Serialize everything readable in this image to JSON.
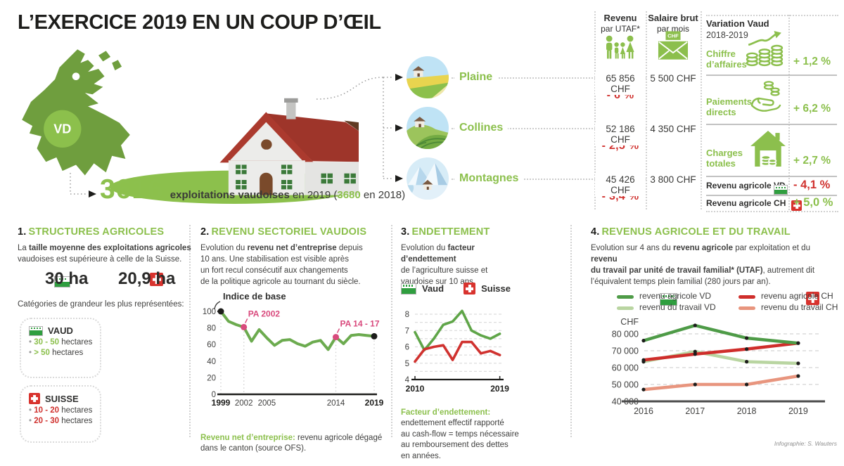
{
  "colors": {
    "accent": "#8cc04d",
    "green_flag": "#2f9e3f",
    "green_dark": "#4e9b47",
    "green_light": "#b9d5a1",
    "red": "#d0322f",
    "salmon": "#e8957e",
    "pink": "#d94a7d",
    "dark": "#1d1d1b"
  },
  "title": "L’EXERCICE 2019 EN UN COUP D’ŒIL",
  "map_badge": "VD",
  "stats": {
    "count": "3616",
    "suffix": [
      {
        "t": "exploitations vaudoises",
        "b": 1
      },
      {
        "t": " en 2019 ("
      },
      {
        "t": "3680",
        "b": 1,
        "c": "#8cc04d"
      },
      {
        "t": " en 2018)"
      }
    ]
  },
  "table": {
    "col1_line1": "Revenu",
    "col1_line2": "par UTAF*",
    "col2_line1": "Salaire brut",
    "col2_line2": "par mois",
    "envelope_label": "CHF",
    "rows": [
      {
        "label": "Plaine",
        "revenu": "65 856 CHF",
        "salaire": "5 500 CHF",
        "change": "- 6 %"
      },
      {
        "label": "Collines",
        "revenu": "52 186 CHF",
        "salaire": "4 350 CHF",
        "change": "- 2,5 %"
      },
      {
        "label": "Montagnes",
        "revenu": "45 426 CHF",
        "salaire": "3 800 CHF",
        "change": "- 3,4 %"
      }
    ]
  },
  "variation": {
    "title_line1": "Variation Vaud",
    "title_line2": "2018-2019",
    "items": [
      {
        "label1": "Chiffre",
        "label2": "d’affaires",
        "value": "+ 1,2 %"
      },
      {
        "label1": "Paiements",
        "label2": "directs",
        "value": "+ 6,2 %"
      },
      {
        "label1": "Charges",
        "label2": "totales",
        "value": "+ 2,7 %"
      }
    ],
    "rows": [
      {
        "label": "Revenu agricole VD",
        "value": "- 4,1 %"
      },
      {
        "label": "Revenu agricole CH",
        "value": "+ 5,0 %"
      }
    ]
  },
  "sections": {
    "s1": {
      "num": "1.",
      "title": "STRUCTURES AGRICOLES",
      "intro": [
        {
          "t": "La "
        },
        {
          "t": "taille moyenne des exploitations agricoles",
          "b": 1
        },
        {
          "br": true
        },
        {
          "t": "vaudoises est supérieure à celle de la Suisse."
        }
      ],
      "vd_value": "30 ha",
      "ch_value": "20,9 ha",
      "categories_label": "Catégories de grandeur les plus représentées:",
      "vaud_card": {
        "title": "VAUD",
        "bullets": [
          [
            {
              "t": "• ",
              "c": "#9a9a9a"
            },
            {
              "t": "30 - 50",
              "b": 1,
              "c": "#8cc04d"
            },
            {
              "t": " hectares"
            }
          ],
          [
            {
              "t": "• ",
              "c": "#9a9a9a"
            },
            {
              "t": "> 50",
              "b": 1,
              "c": "#8cc04d"
            },
            {
              "t": " hectares"
            }
          ]
        ]
      },
      "suisse_card": {
        "title": "SUISSE",
        "bullets": [
          [
            {
              "t": "• ",
              "c": "#9a9a9a"
            },
            {
              "t": "10 - 20",
              "b": 1,
              "c": "#d0322f"
            },
            {
              "t": " hectares"
            }
          ],
          [
            {
              "t": "• ",
              "c": "#9a9a9a"
            },
            {
              "t": "20 - 30",
              "b": 1,
              "c": "#d0322f"
            },
            {
              "t": " hectares"
            }
          ]
        ]
      }
    },
    "s2": {
      "num": "2.",
      "title": "REVENU SECTORIEL VAUDOIS",
      "intro": [
        {
          "t": "Evolution du "
        },
        {
          "t": "revenu net d’entreprise",
          "b": 1
        },
        {
          "t": " depuis"
        },
        {
          "br": true
        },
        {
          "t": "10 ans. Une stabilisation est visible après"
        },
        {
          "br": true
        },
        {
          "t": "un fort recul consécutif aux changements"
        },
        {
          "br": true
        },
        {
          "t": "de la politique agricole au tournant du siècle."
        }
      ],
      "footnote": [
        {
          "t": "Revenu net d’entreprise:",
          "b": 1,
          "c": "#8cc04d"
        },
        {
          "t": " revenu agricole dégagé"
        },
        {
          "br": true
        },
        {
          "t": "dans le canton (source OFS)."
        }
      ]
    },
    "s3": {
      "num": "3.",
      "title": "ENDETTEMENT",
      "intro": [
        {
          "t": "Evolution du "
        },
        {
          "t": "facteur",
          "b": 1
        },
        {
          "br": true
        },
        {
          "t": "d’endettement",
          "b": 1
        },
        {
          "br": true
        },
        {
          "t": "de l’agriculture suisse et"
        },
        {
          "br": true
        },
        {
          "t": "vaudoise sur 10 ans."
        }
      ],
      "footnote": [
        {
          "t": "Facteur d’endettement:",
          "b": 1,
          "c": "#8cc04d"
        },
        {
          "br": true
        },
        {
          "t": "endettement effectif rapporté"
        },
        {
          "br": true
        },
        {
          "t": "au cash-flow = temps nécessaire"
        },
        {
          "br": true
        },
        {
          "t": "au remboursement des dettes"
        },
        {
          "br": true
        },
        {
          "t": "en années."
        }
      ]
    },
    "s4": {
      "num": "4.",
      "title": "REVENUS AGRICOLE ET DU TRAVAIL",
      "intro": [
        {
          "t": "Evolution sur 4 ans du "
        },
        {
          "t": "revenu agricole",
          "b": 1
        },
        {
          "t": " par exploitation et du "
        },
        {
          "t": "revenu",
          "b": 1
        },
        {
          "br": true
        },
        {
          "t": "du travail par unité de travail familial* (UTAF)",
          "b": 1
        },
        {
          "t": ", autrement dit"
        },
        {
          "br": true
        },
        {
          "t": "l’équivalent temps plein familial (280 jours par an)."
        }
      ],
      "credit": "Infographie: S. Wauters"
    }
  },
  "chart_data": [
    {
      "id": "indice",
      "type": "line",
      "title": "2. REVENU SECTORIEL VAUDOIS",
      "note": "Indice de base",
      "x": [
        1999,
        2000,
        2001,
        2002,
        2003,
        2004,
        2005,
        2006,
        2007,
        2008,
        2009,
        2010,
        2011,
        2012,
        2013,
        2014,
        2015,
        2016,
        2017,
        2018,
        2019
      ],
      "values": [
        100,
        88,
        84,
        81,
        64,
        78,
        68,
        59,
        65,
        66,
        61,
        58,
        63,
        65,
        54,
        69,
        61,
        71,
        72,
        71,
        70
      ],
      "color": "#6cab4f",
      "ylim": [
        0,
        100
      ],
      "yticks": [
        {
          "v": 0,
          "label": "0"
        },
        {
          "v": 20,
          "label": "20"
        },
        {
          "v": 40,
          "label": "40"
        },
        {
          "v": 60,
          "label": "60"
        },
        {
          "v": 80,
          "label": "80"
        },
        {
          "v": 100,
          "label": "100"
        }
      ],
      "xticks": [
        {
          "v": 1999,
          "label": "1999",
          "bold": true
        },
        {
          "v": 2002,
          "label": "2002"
        },
        {
          "v": 2005,
          "label": "2005"
        },
        {
          "v": 2014,
          "label": "2014"
        },
        {
          "v": 2019,
          "label": "2019",
          "bold": true
        }
      ],
      "vgrid": [
        1999,
        2002,
        2014,
        2019
      ],
      "annotations": [
        {
          "x": 2002,
          "y": 81,
          "label": "PA 2002"
        },
        {
          "x": 2014,
          "y": 69,
          "label": "PA 14 - 17"
        }
      ],
      "annotation_color": "#d94a7d",
      "endpoint_color": "#1d1d1b"
    },
    {
      "id": "endettement",
      "type": "line",
      "title": "3. ENDETTEMENT",
      "x": [
        2010,
        2011,
        2012,
        2013,
        2014,
        2015,
        2016,
        2017,
        2018,
        2019
      ],
      "series": [
        {
          "name": "Vaud",
          "color": "#5fa548",
          "values": [
            6.9,
            5.8,
            6.5,
            7.35,
            7.55,
            8.2,
            7.0,
            6.7,
            6.5,
            6.8
          ]
        },
        {
          "name": "Suisse",
          "color": "#d0322f",
          "values": [
            5.1,
            5.85,
            6.0,
            6.1,
            5.2,
            6.3,
            6.3,
            5.6,
            5.75,
            5.5
          ]
        }
      ],
      "ylim": [
        4,
        8.5
      ],
      "yticks": [
        {
          "v": 8,
          "label": "8"
        },
        {
          "v": 7,
          "label": "7"
        },
        {
          "v": 6,
          "label": "6"
        },
        {
          "v": 5,
          "label": "5"
        },
        {
          "v": 4,
          "label": "4"
        }
      ],
      "xticks": [
        {
          "v": 2010,
          "label": "2010",
          "bold": true
        },
        {
          "v": 2019,
          "label": "2019",
          "bold": true
        }
      ]
    },
    {
      "id": "revenus",
      "type": "line",
      "title": "4. REVENUS AGRICOLE ET DU TRAVAIL",
      "ylabel": "CHF",
      "x": [
        2016,
        2017,
        2018,
        2019
      ],
      "series": [
        {
          "name": "revenu agricole VD",
          "color": "#4e9b47",
          "values": [
            76000,
            85000,
            77500,
            74500
          ]
        },
        {
          "name": "revenu du travail VD",
          "color": "#b9d5a1",
          "values": [
            63500,
            69500,
            63500,
            62500
          ]
        },
        {
          "name": "revenu agricole CH",
          "color": "#cf2e2b",
          "values": [
            64500,
            68000,
            71000,
            74500
          ]
        },
        {
          "name": "revenu du travail CH",
          "color": "#e8957e",
          "values": [
            47000,
            50000,
            50000,
            55000
          ]
        }
      ],
      "ylim": [
        40000,
        88000
      ],
      "yticks": [
        {
          "v": 40000,
          "label": "40 000"
        },
        {
          "v": 50000,
          "label": "50 000"
        },
        {
          "v": 60000,
          "label": "60 000"
        },
        {
          "v": 70000,
          "label": "70 000"
        },
        {
          "v": 80000,
          "label": "80 000"
        }
      ],
      "xticks": [
        {
          "v": 2016,
          "label": "2016"
        },
        {
          "v": 2017,
          "label": "2017"
        },
        {
          "v": 2018,
          "label": "2018"
        },
        {
          "v": 2019,
          "label": "2019"
        }
      ]
    }
  ]
}
